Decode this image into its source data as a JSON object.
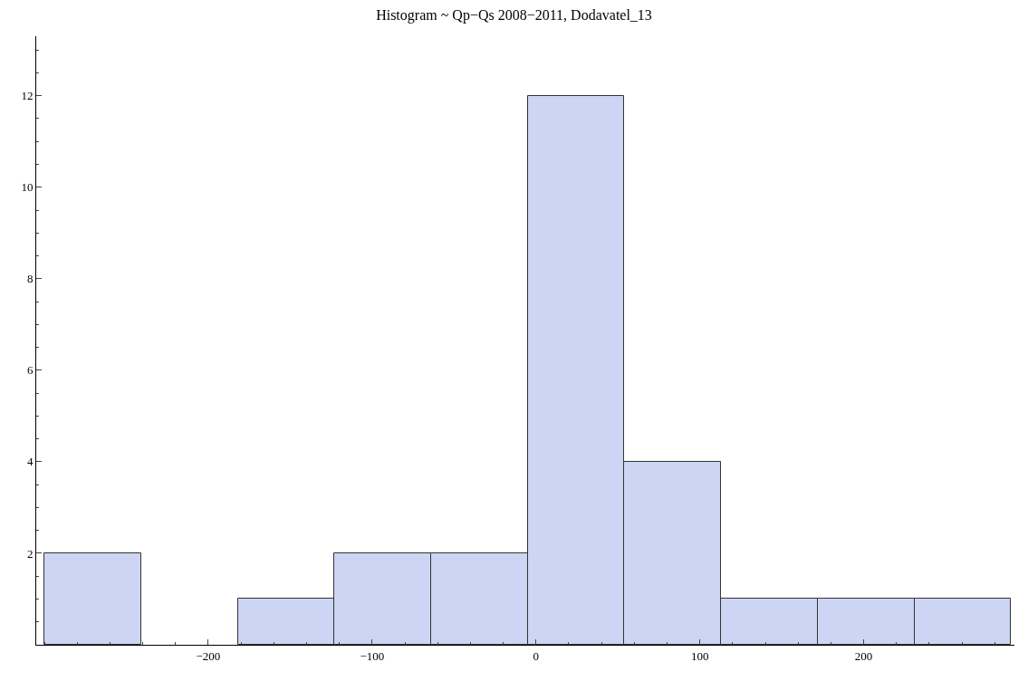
{
  "chart_data": {
    "type": "histogram",
    "title": "Histogram ~ Qp−Qs 2008−2011, Dodavatel_13",
    "bins": [
      -300,
      -241,
      -182,
      -123,
      -64,
      -5,
      54,
      113,
      172,
      231,
      290
    ],
    "values": [
      2,
      0,
      1,
      2,
      2,
      12,
      4,
      1,
      1,
      1
    ],
    "color": "#ccd5f3",
    "xlim": [
      -305,
      292
    ],
    "xticks": [
      -200,
      -100,
      0,
      100,
      200
    ],
    "ylim": [
      0,
      13.3
    ],
    "yticks": [
      2,
      4,
      6,
      8,
      10,
      12
    ]
  }
}
